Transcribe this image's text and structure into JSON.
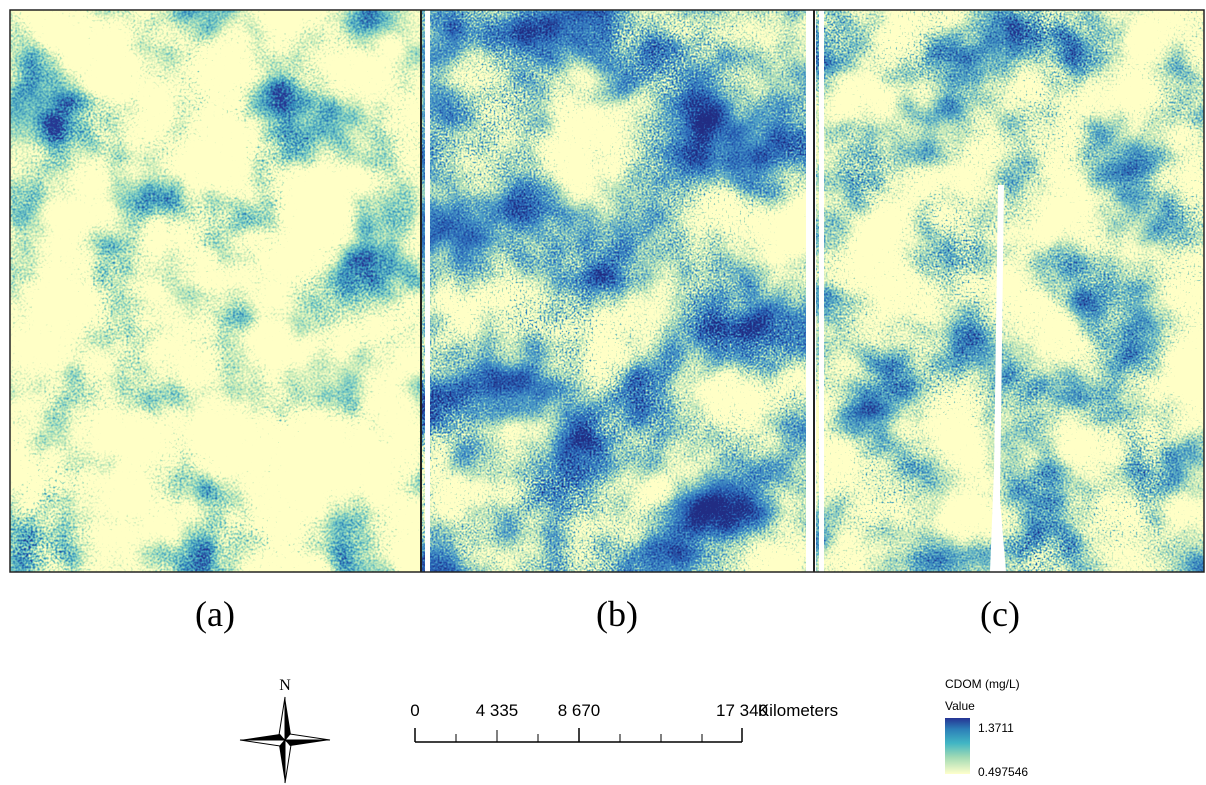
{
  "panels": [
    {
      "label": "(a)"
    },
    {
      "label": "(b)"
    },
    {
      "label": "(c)"
    }
  ],
  "north_arrow": {
    "label": "N"
  },
  "scale_bar": {
    "labels": [
      "0",
      "4 335",
      "8 670",
      "17 340"
    ],
    "unit": "Kilometers"
  },
  "legend": {
    "title": "CDOM (mg/L)",
    "subtitle": "Value",
    "max": "1.3711",
    "min": "0.497546"
  }
}
